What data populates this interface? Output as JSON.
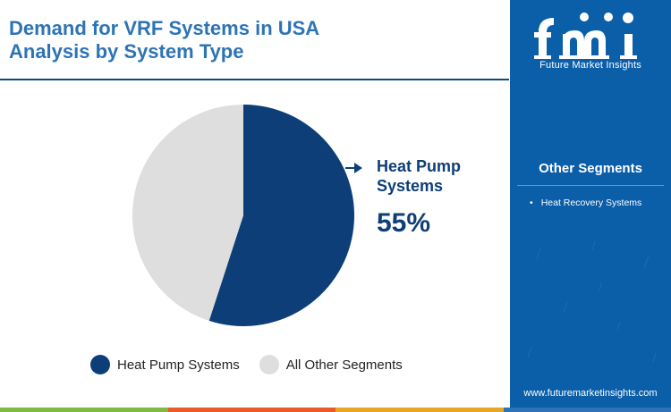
{
  "header": {
    "title_line1": "Demand for VRF Systems in USA",
    "title_line2": "Analysis by System Type"
  },
  "chart_data": {
    "type": "pie",
    "categories": [
      "Heat Pump Systems",
      "All Other Segments"
    ],
    "values": [
      55,
      45
    ],
    "colors": [
      "#0e3e77",
      "#dedede"
    ],
    "annotations": [
      {
        "label": "Heat Pump Systems",
        "value_text": "55%"
      }
    ],
    "legend_position": "bottom"
  },
  "callout": {
    "label": "Heat Pump Systems",
    "value": "55%"
  },
  "legend": {
    "items": [
      {
        "label": "Heat Pump Systems",
        "color": "#0e3e77"
      },
      {
        "label": "All Other Segments",
        "color": "#dedede"
      }
    ]
  },
  "sidebar": {
    "brand": "Future Market Insights",
    "other_segments_title": "Other Segments",
    "other_segments": [
      "Heat Recovery Systems"
    ],
    "website": "www.futuremarketinsights.com"
  },
  "footer": {
    "bar_colors": [
      "#7dbb42",
      "#e85c2a",
      "#e7a628",
      "#2e74b5"
    ]
  },
  "colors": {
    "title": "#2e74b5",
    "panel": "#0b5ea8",
    "primary": "#0e3e77"
  }
}
